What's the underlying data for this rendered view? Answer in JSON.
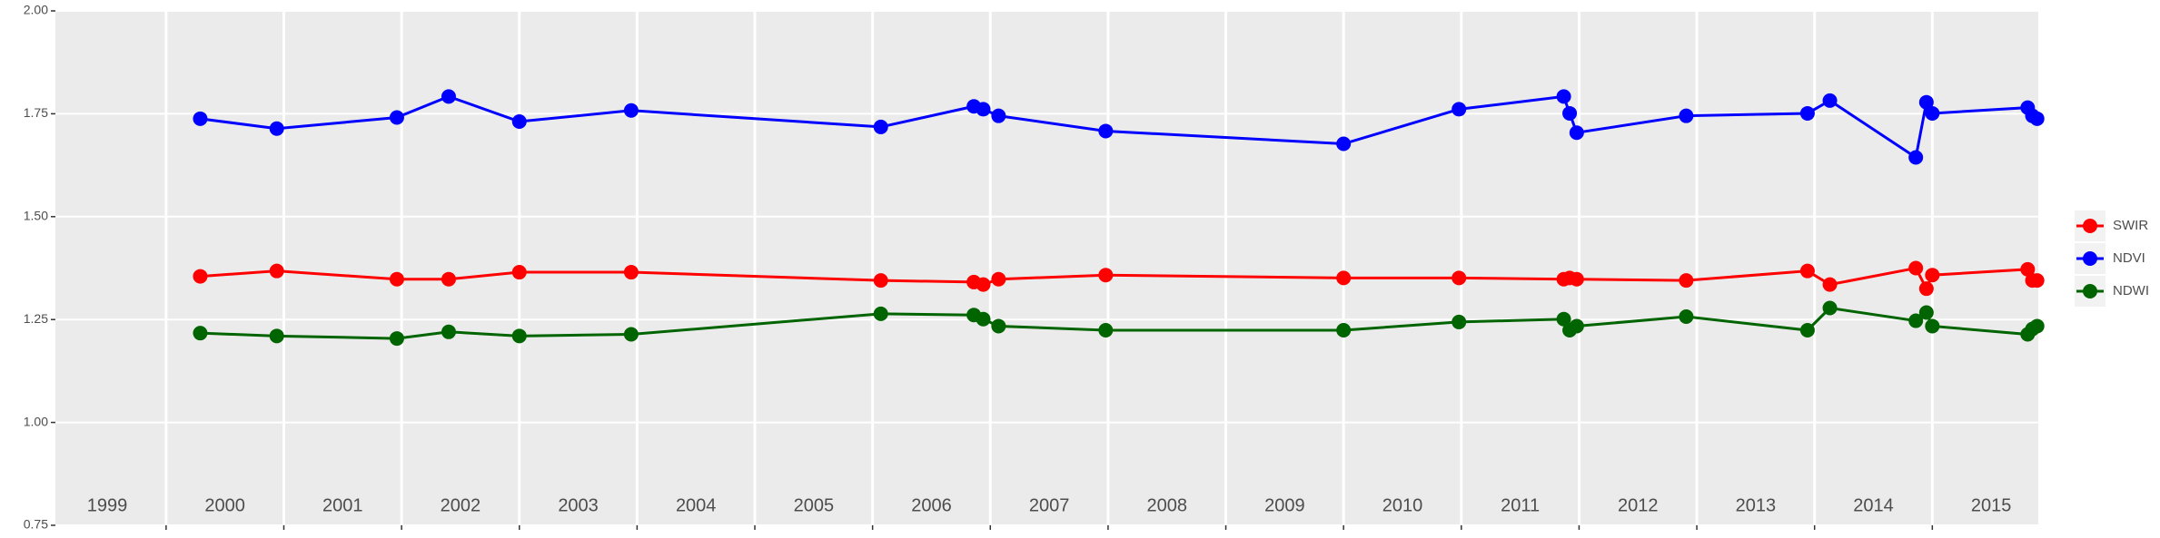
{
  "chart_data": {
    "type": "line",
    "x": [
      2000.29,
      2000.94,
      2001.96,
      2002.4,
      2003.0,
      2003.95,
      2006.07,
      2006.86,
      2006.94,
      2007.07,
      2007.98,
      2010.0,
      2010.98,
      2011.87,
      2011.92,
      2011.98,
      2012.91,
      2013.94,
      2014.13,
      2014.86,
      2014.95,
      2015.0,
      2015.81,
      2015.85,
      2015.89
    ],
    "series": [
      {
        "name": "SWIR",
        "color": "#ff0000",
        "values": [
          1.355,
          1.368,
          1.348,
          1.348,
          1.365,
          1.365,
          1.345,
          1.341,
          1.335,
          1.348,
          1.358,
          1.351,
          1.351,
          1.348,
          1.351,
          1.348,
          1.345,
          1.368,
          1.335,
          1.375,
          1.325,
          1.358,
          1.372,
          1.345,
          1.345
        ]
      },
      {
        "name": "NDVI",
        "color": "#0000ff",
        "values": [
          1.738,
          1.714,
          1.741,
          1.792,
          1.731,
          1.758,
          1.718,
          1.768,
          1.761,
          1.745,
          1.708,
          1.677,
          1.761,
          1.792,
          1.751,
          1.704,
          1.745,
          1.751,
          1.782,
          1.644,
          1.778,
          1.751,
          1.765,
          1.745,
          1.738
        ]
      },
      {
        "name": "NDWI",
        "color": "#006400",
        "values": [
          1.217,
          1.21,
          1.204,
          1.22,
          1.21,
          1.214,
          1.264,
          1.261,
          1.251,
          1.234,
          1.224,
          1.224,
          1.244,
          1.251,
          1.224,
          1.234,
          1.257,
          1.224,
          1.278,
          1.247,
          1.267,
          1.234,
          1.214,
          1.227,
          1.234
        ]
      }
    ],
    "xlim": [
      1999.06,
      2015.9
    ],
    "xticks": [
      {
        "value": 1999.5,
        "label": "1999"
      },
      {
        "value": 2000.5,
        "label": "2000"
      },
      {
        "value": 2001.5,
        "label": "2001"
      },
      {
        "value": 2002.5,
        "label": "2002"
      },
      {
        "value": 2003.5,
        "label": "2003"
      },
      {
        "value": 2004.5,
        "label": "2004"
      },
      {
        "value": 2005.5,
        "label": "2005"
      },
      {
        "value": 2006.5,
        "label": "2006"
      },
      {
        "value": 2007.5,
        "label": "2007"
      },
      {
        "value": 2008.5,
        "label": "2008"
      },
      {
        "value": 2009.5,
        "label": "2009"
      },
      {
        "value": 2010.5,
        "label": "2010"
      },
      {
        "value": 2011.5,
        "label": "2011"
      },
      {
        "value": 2012.5,
        "label": "2012"
      },
      {
        "value": 2013.5,
        "label": "2013"
      },
      {
        "value": 2014.5,
        "label": "2014"
      },
      {
        "value": 2015.5,
        "label": "2015"
      }
    ],
    "xgrid_lines": [
      2000,
      2001,
      2002,
      2003,
      2004,
      2005,
      2006,
      2007,
      2008,
      2009,
      2010,
      2011,
      2012,
      2013,
      2014,
      2015
    ],
    "ylim": [
      0.75,
      2.0
    ],
    "yticks": [
      {
        "value": 0.75,
        "label": "0.75"
      },
      {
        "value": 1.0,
        "label": "1.00"
      },
      {
        "value": 1.25,
        "label": "1.25"
      },
      {
        "value": 1.5,
        "label": "1.50"
      },
      {
        "value": 1.75,
        "label": "1.75"
      },
      {
        "value": 2.0,
        "label": "2.00"
      }
    ],
    "grid": true,
    "legend": "right"
  }
}
